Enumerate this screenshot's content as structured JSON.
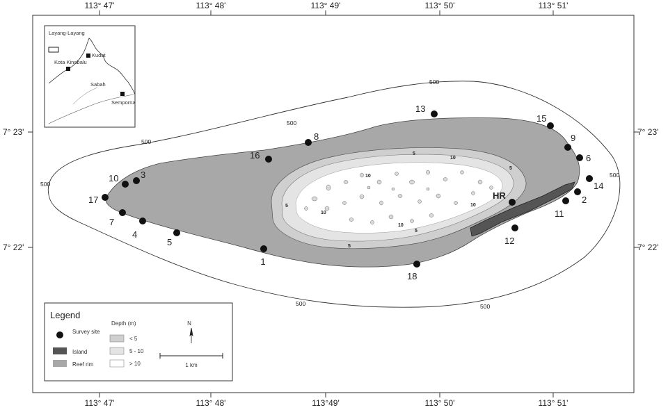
{
  "longitude_labels": [
    "113° 47'",
    "113° 48'",
    "113° 49'",
    "113° 50'",
    "113° 51'"
  ],
  "longitude_labels_bottom": [
    "113° 47'",
    "113° 48'",
    "113°49'",
    "113° 50'",
    "113° 51'"
  ],
  "latitude_labels": [
    "7° 23'",
    "7° 22'"
  ],
  "contour_label": "500",
  "depth_labels": [
    "5",
    "10"
  ],
  "inset": {
    "box_label": "Layang-Layang",
    "places": [
      "Kudat",
      "Kota Kinabalu",
      "Sabah",
      "Semporna"
    ]
  },
  "sites": [
    "1",
    "2",
    "3",
    "4",
    "5",
    "6",
    "7",
    "8",
    "9",
    "10",
    "11",
    "12",
    "13",
    "14",
    "15",
    "16",
    "17",
    "18"
  ],
  "hr_label": "HR",
  "legend": {
    "title": "Legend",
    "survey_site": "Survey site",
    "island": "Island",
    "reef_rim": "Reef rim",
    "depth_title": "Depth (m)",
    "depth_classes": [
      "< 5",
      "5 - 10",
      "> 10"
    ],
    "north": "N",
    "scale": "1 km"
  },
  "colors": {
    "reef_rim": "#a8a8a8",
    "island": "#555555",
    "depth_shallow": "#cfcfcf",
    "depth_mid": "#e4e4e4",
    "depth_deep": "#ffffff",
    "site": "#111111"
  }
}
